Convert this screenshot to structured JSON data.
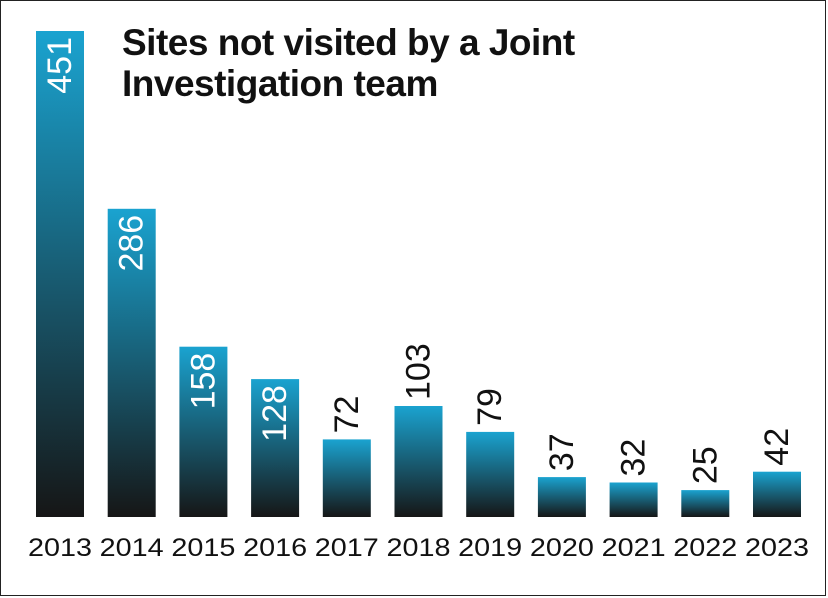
{
  "chart_data": {
    "type": "bar",
    "title": "Sites not visited by a Joint Investigation team",
    "categories": [
      "2013",
      "2014",
      "2015",
      "2016",
      "2017",
      "2018",
      "2019",
      "2020",
      "2021",
      "2022",
      "2023"
    ],
    "values": [
      451,
      286,
      158,
      128,
      72,
      103,
      79,
      37,
      32,
      25,
      42
    ],
    "xlabel": "",
    "ylabel": "",
    "ylim": [
      0,
      451
    ],
    "grid": false,
    "legend": "none",
    "colors": {
      "bar_top": "#1aa3d0",
      "bar_bottom": "#161616",
      "label_inside": "#ffffff",
      "label_outside": "#111111"
    }
  }
}
